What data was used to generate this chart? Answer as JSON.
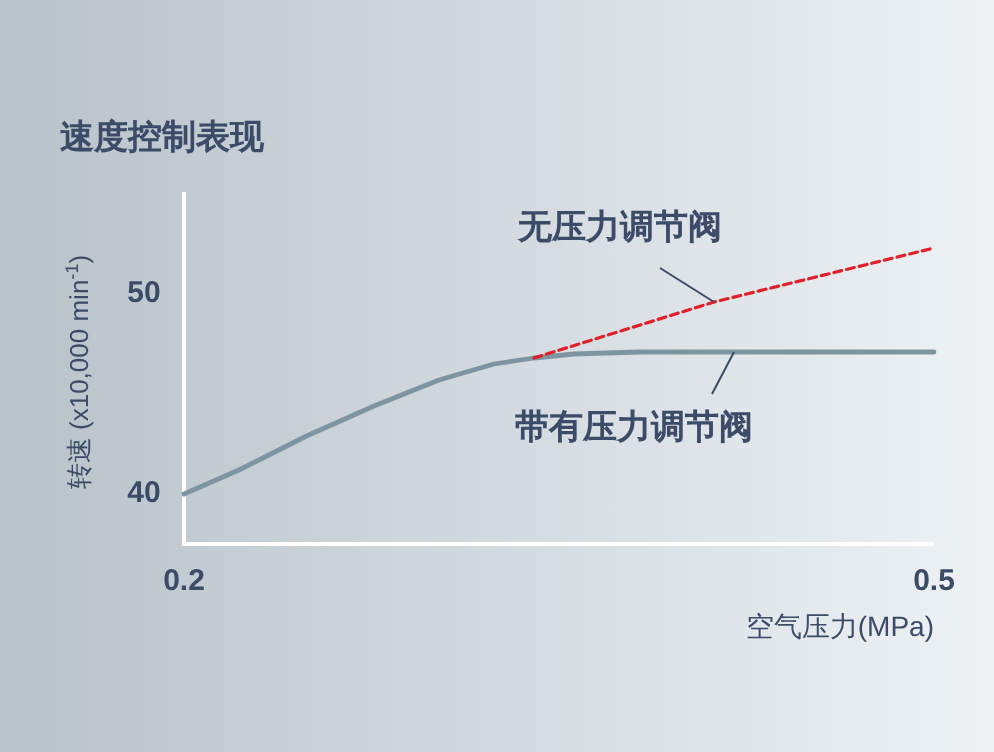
{
  "chart_data": {
    "type": "line",
    "title": "速度控制表现",
    "xlabel": "空气压力(MPa)",
    "ylabel": "转速 (x10,000 min$^{-1}$)",
    "xlim": [
      0.2,
      0.5
    ],
    "ylim": [
      37.4,
      55
    ],
    "xticks": [
      0.2,
      0.5
    ],
    "yticks": [
      40,
      50
    ],
    "marker": "none",
    "series": [
      {
        "name": "带有压力调节阀",
        "color": "#7d95a0",
        "line_style": "solid",
        "x": [
          0.2,
          0.222,
          0.249,
          0.276,
          0.302,
          0.324,
          0.34,
          0.356,
          0.382,
          0.42,
          0.5
        ],
        "values": [
          39.9,
          41.1,
          42.8,
          44.3,
          45.6,
          46.4,
          46.7,
          46.9,
          47.0,
          47.0,
          47.0
        ]
      },
      {
        "name": "无压力调节阀",
        "color": "#e0202a",
        "line_style": "dashed",
        "x": [
          0.34,
          0.412,
          0.5
        ],
        "values": [
          46.7,
          49.5,
          52.2
        ]
      }
    ]
  }
}
